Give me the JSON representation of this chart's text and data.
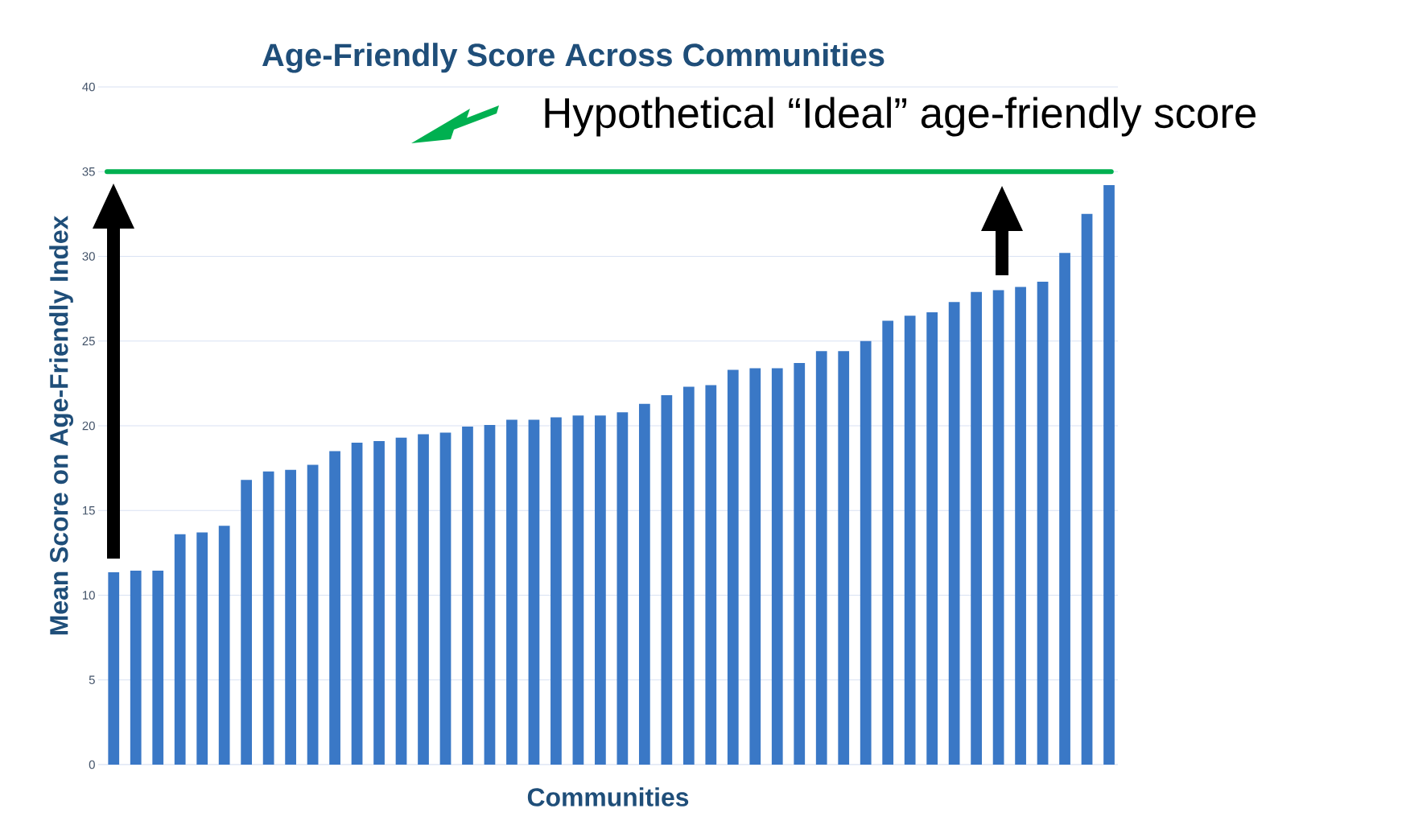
{
  "chart_data": {
    "type": "bar",
    "title": "Age-Friendly Score Across Communities",
    "xlabel": "Communities",
    "ylabel": "Mean Score on Age-Friendly Index",
    "categories": [
      null,
      null,
      null,
      null,
      null,
      null,
      null,
      null,
      null,
      null,
      null,
      null,
      null,
      null,
      null,
      null,
      null,
      null,
      null,
      null,
      null,
      null,
      null,
      null,
      null,
      null,
      null,
      null,
      null,
      null,
      null,
      null,
      null,
      null,
      null,
      null,
      null,
      null,
      null,
      null,
      null,
      null,
      null,
      null,
      null,
      null
    ],
    "values": [
      11.35,
      11.45,
      11.45,
      13.6,
      13.7,
      14.1,
      16.8,
      17.3,
      17.4,
      17.7,
      18.5,
      19.0,
      19.1,
      19.3,
      19.5,
      19.6,
      19.95,
      20.05,
      20.35,
      20.35,
      20.5,
      20.6,
      20.6,
      20.8,
      21.3,
      21.8,
      22.3,
      22.4,
      23.3,
      23.4,
      23.4,
      23.7,
      24.4,
      24.4,
      25.0,
      26.2,
      26.5,
      26.7,
      27.3,
      27.9,
      28.0,
      28.2,
      28.5,
      30.2,
      32.5,
      34.2
    ],
    "color": "#3a78c6",
    "ylim": [
      0,
      40
    ],
    "yticks": [
      0,
      5,
      10,
      15,
      20,
      25,
      30,
      35,
      40
    ],
    "grid": "y",
    "tick_labels": "y",
    "ref_lines": [
      {
        "axis": "y",
        "value": 35,
        "label": "Hypothetical “Ideal” age-friendly score",
        "color": "#00b050"
      }
    ]
  }
}
